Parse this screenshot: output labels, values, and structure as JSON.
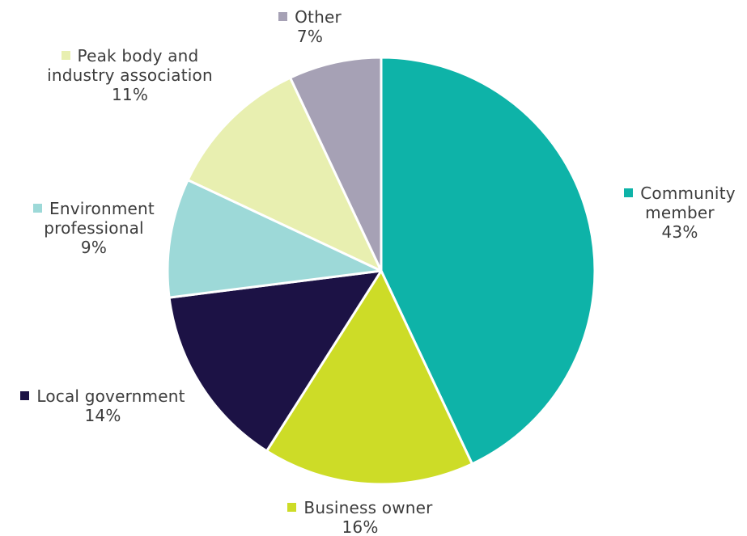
{
  "chart_data": {
    "type": "pie",
    "start_angle_deg": 0,
    "direction": "clockwise",
    "slice_border_color": "#ffffff",
    "slices": [
      {
        "label_lines": [
          "Community",
          "member"
        ],
        "value": 43,
        "value_label": "43%",
        "color": "#0eb3a8"
      },
      {
        "label_lines": [
          "Business owner"
        ],
        "value": 16,
        "value_label": "16%",
        "color": "#cddc27"
      },
      {
        "label_lines": [
          "Local government"
        ],
        "value": 14,
        "value_label": "14%",
        "color": "#1c1245"
      },
      {
        "label_lines": [
          "Environment",
          "professional"
        ],
        "value": 9,
        "value_label": "9%",
        "color": "#9dd9d8"
      },
      {
        "label_lines": [
          "Peak body and",
          "industry association"
        ],
        "value": 11,
        "value_label": "11%",
        "color": "#e8efb0"
      },
      {
        "label_lines": [
          "Other"
        ],
        "value": 7,
        "value_label": "7%",
        "color": "#a6a1b5"
      }
    ]
  }
}
